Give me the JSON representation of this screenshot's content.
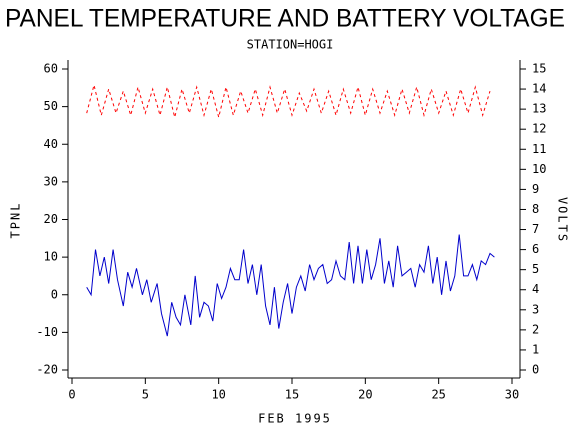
{
  "chart_data": {
    "type": "line",
    "title": "PANEL TEMPERATURE AND BATTERY VOLTAGE",
    "subtitle": "STATION=HOGI",
    "xlabel": "FEB 1995",
    "ylabel": "TPNL",
    "y2label": "VOLTS",
    "xlim": [
      0,
      30
    ],
    "xticks": [
      0,
      5,
      10,
      15,
      20,
      25,
      30
    ],
    "ylim": [
      -20,
      60
    ],
    "yticks": [
      -20,
      -10,
      0,
      10,
      20,
      30,
      40,
      50,
      60
    ],
    "y2lim": [
      0,
      15
    ],
    "y2ticks": [
      0,
      1,
      2,
      3,
      4,
      5,
      6,
      7,
      8,
      9,
      10,
      11,
      12,
      13,
      14,
      15
    ],
    "series": [
      {
        "color": "#0000cc",
        "dashed": false,
        "x": [
          1.0,
          1.3,
          1.6,
          1.9,
          2.2,
          2.5,
          2.8,
          3.1,
          3.5,
          3.8,
          4.1,
          4.4,
          4.8,
          5.1,
          5.4,
          5.8,
          6.1,
          6.5,
          6.8,
          7.1,
          7.4,
          7.7,
          8.1,
          8.4,
          8.7,
          9.0,
          9.3,
          9.6,
          9.9,
          10.2,
          10.5,
          10.8,
          11.1,
          11.4,
          11.7,
          12.0,
          12.3,
          12.6,
          12.9,
          13.2,
          13.5,
          13.8,
          14.1,
          14.4,
          14.7,
          15.0,
          15.3,
          15.6,
          15.9,
          16.2,
          16.5,
          16.8,
          17.1,
          17.4,
          17.7,
          18.0,
          18.3,
          18.6,
          18.9,
          19.2,
          19.5,
          19.8,
          20.1,
          20.4,
          20.7,
          21.0,
          21.3,
          21.6,
          21.9,
          22.2,
          22.5,
          22.8,
          23.1,
          23.4,
          23.7,
          24.0,
          24.3,
          24.6,
          24.9,
          25.2,
          25.5,
          25.8,
          26.1,
          26.4,
          26.7,
          27.0,
          27.3,
          27.6,
          27.9,
          28.2,
          28.5,
          28.8
        ],
        "values": [
          2,
          0,
          12,
          5,
          10,
          3,
          12,
          4,
          -3,
          6,
          2,
          7,
          0,
          4,
          -2,
          3,
          -5,
          -11,
          -2,
          -6,
          -8,
          0,
          -8,
          5,
          -6,
          -2,
          -3,
          -7,
          3,
          -1,
          2,
          7,
          4,
          4,
          12,
          3,
          8,
          0,
          8,
          -3,
          -8,
          2,
          -9,
          -2,
          3,
          -5,
          2,
          5,
          1,
          8,
          4,
          7,
          8,
          3,
          4,
          9,
          5,
          4,
          14,
          3,
          13,
          3,
          12,
          4,
          8,
          15,
          3,
          9,
          2,
          13,
          5,
          6,
          7,
          2,
          8,
          6,
          13,
          3,
          10,
          0,
          9,
          1,
          5,
          16,
          5,
          5,
          8,
          4,
          9,
          8,
          11,
          10
        ]
      },
      {
        "color": "#ff0000",
        "dashed": true,
        "axis": "y2",
        "x": [
          1.0,
          1.5,
          2.0,
          2.5,
          3.0,
          3.5,
          4.0,
          4.5,
          5.0,
          5.5,
          6.0,
          6.5,
          7.0,
          7.5,
          8.0,
          8.5,
          9.0,
          9.5,
          10.0,
          10.5,
          11.0,
          11.5,
          12.0,
          12.5,
          13.0,
          13.5,
          14.0,
          14.5,
          15.0,
          15.5,
          16.0,
          16.5,
          17.0,
          17.5,
          18.0,
          18.5,
          19.0,
          19.5,
          20.0,
          20.5,
          21.0,
          21.5,
          22.0,
          22.5,
          23.0,
          23.5,
          24.0,
          24.5,
          25.0,
          25.5,
          26.0,
          26.5,
          27.0,
          27.5,
          28.0,
          28.5
        ],
        "values": [
          12.8,
          14.2,
          12.7,
          14.0,
          12.8,
          13.9,
          12.7,
          14.1,
          12.8,
          14.0,
          12.7,
          14.1,
          12.6,
          14.0,
          12.8,
          14.1,
          12.7,
          14.0,
          12.6,
          14.1,
          12.7,
          13.9,
          12.8,
          14.0,
          12.7,
          14.1,
          12.8,
          14.0,
          12.7,
          13.8,
          12.9,
          14.0,
          12.8,
          13.9,
          12.7,
          14.0,
          12.8,
          14.1,
          12.7,
          14.0,
          12.8,
          13.9,
          12.7,
          14.0,
          12.8,
          14.1,
          12.7,
          14.0,
          12.8,
          13.9,
          12.7,
          14.0,
          12.8,
          14.1,
          12.7,
          13.9
        ]
      }
    ]
  }
}
